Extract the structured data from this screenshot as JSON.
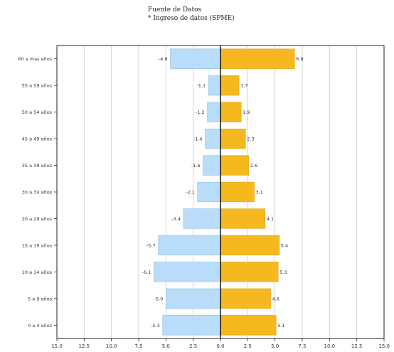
{
  "header": {
    "line1": "Fuente de Datos",
    "line2": "* Ingreso de datos (SPME)"
  },
  "colors": {
    "left_bar": "#b9dcfa",
    "left_stroke": "#7fb6e6",
    "right_bar": "#f6b81f",
    "right_stroke": "#d99a08",
    "grid": "#c8c8c8",
    "axis": "#222222"
  },
  "chart_data": {
    "type": "bar",
    "orientation": "horizontal-diverging",
    "categories": [
      "0 a 4 años",
      "5 a 9 años",
      "10 a 14 años",
      "15 a 19 años",
      "20 a 29 años",
      "30 a 34 años",
      "35 a 39 años",
      "45 a 49 años",
      "50 a 54 años",
      "55 a 59 años",
      "60 a mas años"
    ],
    "series": [
      {
        "values": [
          -5.3,
          -5.0,
          -6.1,
          -5.7,
          -3.4,
          -2.1,
          -1.6,
          -1.4,
          -1.2,
          -1.1,
          -4.6
        ],
        "labels": [
          "-5.3",
          "-5.0",
          "-6.1",
          "-5.7",
          "-3.4",
          "-2.1",
          "-1.6",
          "-1.4",
          "-1.2",
          "-1.1",
          "-4.6"
        ]
      },
      {
        "values": [
          5.1,
          4.6,
          5.3,
          5.4,
          4.1,
          3.1,
          2.6,
          2.3,
          1.9,
          1.7,
          6.8
        ],
        "labels": [
          "5.1",
          "4.6",
          "5.3",
          "5.4",
          "4.1",
          "3.1",
          "2.6",
          "2.3",
          "1.9",
          "1.7",
          "6.8"
        ]
      }
    ],
    "xlim": [
      -15.0,
      15.0
    ],
    "xticks": [
      -15.0,
      -12.5,
      -10.0,
      -7.5,
      -5.0,
      -2.5,
      0.0,
      2.5,
      5.0,
      7.5,
      10.0,
      12.5,
      15.0
    ],
    "xtick_labels": [
      "15.0",
      "12.5",
      "10.0",
      "7.5",
      "5.0",
      "2.5",
      "0.0",
      "2.5",
      "5.0",
      "7.5",
      "10.0",
      "12.5",
      "15.0"
    ],
    "grid": true
  }
}
